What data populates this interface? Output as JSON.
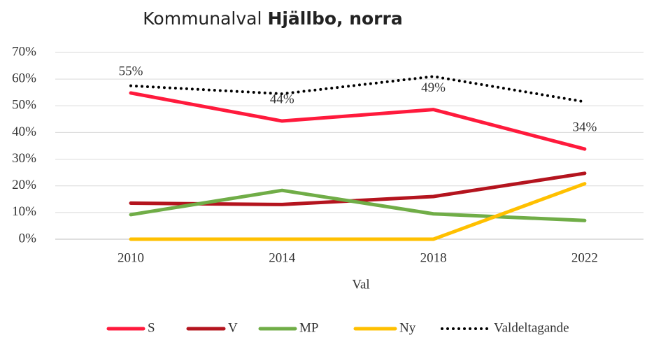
{
  "chart_data": {
    "type": "line",
    "title": [
      "Kommunalval",
      "Hjällbo, norra"
    ],
    "x_label": "Val",
    "categories": [
      "2010",
      "2014",
      "2018",
      "2022"
    ],
    "ylim": [
      0,
      70
    ],
    "yticks": [
      {
        "value": 0,
        "label": "0%"
      },
      {
        "value": 10,
        "label": "10%"
      },
      {
        "value": 20,
        "label": "20%"
      },
      {
        "value": 30,
        "label": "30%"
      },
      {
        "value": 40,
        "label": "40%"
      },
      {
        "value": 50,
        "label": "50%"
      },
      {
        "value": 60,
        "label": "60%"
      },
      {
        "value": 70,
        "label": "70%"
      }
    ],
    "grid": true,
    "legend": "bottom",
    "series": [
      {
        "name": "S",
        "color": "#ff1a3c",
        "values": [
          54.8,
          44.3,
          48.6,
          33.8
        ],
        "value_labels": [
          "55%",
          "44%",
          "49%",
          "34%"
        ]
      },
      {
        "name": "V",
        "color": "#b4141e",
        "values": [
          13.5,
          13,
          16,
          24.7
        ]
      },
      {
        "name": "MP",
        "color": "#70ad47",
        "values": [
          9.2,
          18.3,
          9.5,
          7
        ]
      },
      {
        "name": "Ny",
        "color": "#ffc000",
        "values": [
          0,
          0,
          0,
          20.8
        ]
      },
      {
        "name": "Valdeltagande",
        "color": "#000000",
        "dotted": true,
        "values": [
          57.5,
          54.5,
          61,
          51.5
        ]
      }
    ]
  }
}
